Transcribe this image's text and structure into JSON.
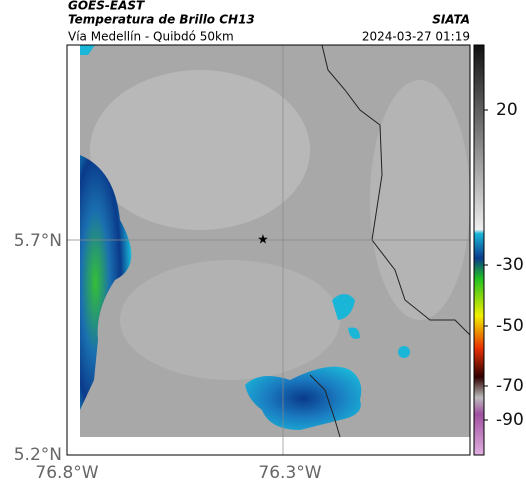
{
  "header": {
    "source": "GOES-EAST",
    "title": "Temperatura de Brillo CH13",
    "brand": "SIATA",
    "subtitle": "Vía Medellín - Quibdó 50km",
    "datetime": "2024-03-27 01:19"
  },
  "map": {
    "lat_labels": [
      "5.7°N",
      "5.2°N"
    ],
    "lon_labels": [
      "76.8°W",
      "76.3°W"
    ]
  },
  "colorbar": {
    "ticks": [
      20,
      -30,
      -50,
      -70,
      -90
    ]
  }
}
